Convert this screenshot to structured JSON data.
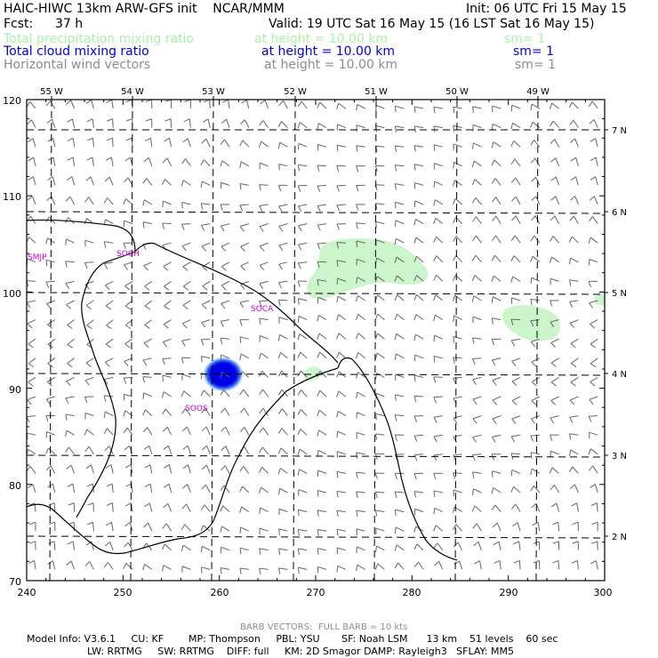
{
  "header": {
    "title": "HAIC-HIWC 13km ARW-GFS init    NCAR/MMM",
    "init": "Init: 06 UTC Fri 15 May 15",
    "fcst_label": "Fcst:",
    "fcst_value": "37 h",
    "valid": "Valid: 19 UTC Sat 16 May 15 (16 LST Sat 16 May 15)",
    "fields": [
      {
        "name": "Total precipitation mixing ratio",
        "height": "at height = 10.00 km",
        "sm": "sm= 1",
        "color": "#a9f2a9"
      },
      {
        "name": "Total cloud mixing ratio",
        "height": "at height = 10.00 km",
        "sm": "sm= 1",
        "color": "#0000d8"
      },
      {
        "name": "Horizontal wind vectors",
        "height": "at height = 10.00 km",
        "sm": "sm= 1",
        "color": "#8c8c8c"
      }
    ]
  },
  "map": {
    "lon_labels": [
      "55 W",
      "54 W",
      "53 W",
      "52 W",
      "51 W",
      "50 W",
      "49 W"
    ],
    "lat_labels": [
      "7 N",
      "6 N",
      "5 N",
      "4 N",
      "3 N",
      "2 N"
    ],
    "y_ticks": [
      "120",
      "110",
      "100",
      "90",
      "80",
      "70"
    ],
    "x_ticks": [
      "240",
      "250",
      "260",
      "270",
      "280",
      "290",
      "300"
    ],
    "stations": [
      {
        "id": "SMJP"
      },
      {
        "id": "SOCH"
      },
      {
        "id": "SOCA"
      },
      {
        "id": "SOOS"
      }
    ],
    "station_color": "#cc00cc",
    "precip_color": "#ccf5cc",
    "cloud_color": "#0000e6"
  },
  "footer": {
    "barb_note": "BARB VECTORS:  FULL BARB = 10 kts",
    "line1": "Model Info: V3.6.1     CU: KF        MP: Thompson     PBL: YSU       SF: Noah LSM      13 km    51 levels    60 sec",
    "line2": "LW: RRTMG     SW: RRTMG    DIFF: full     KM: 2D Smagor DAMP: Rayleigh3   SFLAY: MM5"
  }
}
